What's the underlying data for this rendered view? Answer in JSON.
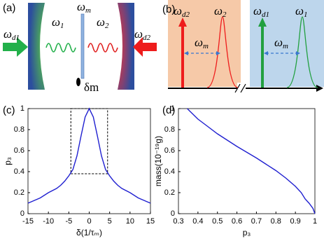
{
  "diagram_a": {
    "label": "(a)",
    "drive1": {
      "main": "ω",
      "sub": "d1"
    },
    "mode1": {
      "main": "ω",
      "sub": "1"
    },
    "membrane": {
      "main": "ω",
      "sub": "m"
    },
    "mode2": {
      "main": "ω",
      "sub": "2"
    },
    "drive2": {
      "main": "ω",
      "sub": "d2"
    },
    "mass": "δm"
  },
  "diagram_b": {
    "label": "(b)",
    "drive2": {
      "main": "ω",
      "sub": "d2"
    },
    "mode2": {
      "main": "ω",
      "sub": "2"
    },
    "shift2": {
      "main": "ω",
      "sub": "m"
    },
    "drive1": {
      "main": "ω",
      "sub": "d1"
    },
    "mode1": {
      "main": "ω",
      "sub": "1"
    },
    "shift1": {
      "main": "ω",
      "sub": "m"
    }
  },
  "chart_data": [
    {
      "type": "line",
      "panel_label": "(c)",
      "xlabel": "δ(1/τₘ)",
      "ylabel": "p₃",
      "x": [
        -15,
        -12,
        -10,
        -8,
        -7,
        -6,
        -5,
        -4,
        -3,
        -2,
        -1,
        0,
        1,
        2,
        3,
        4,
        5,
        6,
        7,
        8,
        10,
        12,
        15
      ],
      "values": [
        0.1,
        0.15,
        0.2,
        0.24,
        0.27,
        0.31,
        0.36,
        0.42,
        0.55,
        0.74,
        0.92,
        1.0,
        0.92,
        0.74,
        0.55,
        0.42,
        0.36,
        0.31,
        0.27,
        0.24,
        0.2,
        0.15,
        0.1
      ],
      "color": "#1f1fd0",
      "xlim": [
        -15,
        15
      ],
      "ylim": [
        0,
        1
      ],
      "xticks": [
        -15,
        -10,
        -5,
        0,
        5,
        10,
        15
      ],
      "yticks": [
        0,
        0.2,
        0.4,
        0.6,
        0.8,
        1
      ],
      "highlight_box": {
        "x": [
          -4.5,
          4.5
        ],
        "y": [
          0.38,
          1
        ]
      }
    },
    {
      "type": "line",
      "panel_label": "(d)",
      "xlabel": "p₃",
      "ylabel": "mass(10⁻¹⁹g)",
      "x": [
        0.345,
        0.4,
        0.45,
        0.5,
        0.55,
        0.6,
        0.65,
        0.7,
        0.75,
        0.8,
        0.85,
        0.9,
        0.93,
        0.95,
        0.97,
        0.99,
        1.0
      ],
      "values": [
        1.0,
        0.9,
        0.83,
        0.76,
        0.7,
        0.64,
        0.585,
        0.53,
        0.47,
        0.41,
        0.34,
        0.26,
        0.2,
        0.14,
        0.1,
        0.05,
        0
      ],
      "color": "#1f1fd0",
      "xlim": [
        0.3,
        1
      ],
      "ylim": [
        0,
        1
      ],
      "xticks": [
        0.3,
        0.4,
        0.5,
        0.6,
        0.7,
        0.8,
        0.9,
        1
      ],
      "yticks": [
        0,
        0.2,
        0.4,
        0.6,
        0.8,
        1
      ]
    }
  ]
}
